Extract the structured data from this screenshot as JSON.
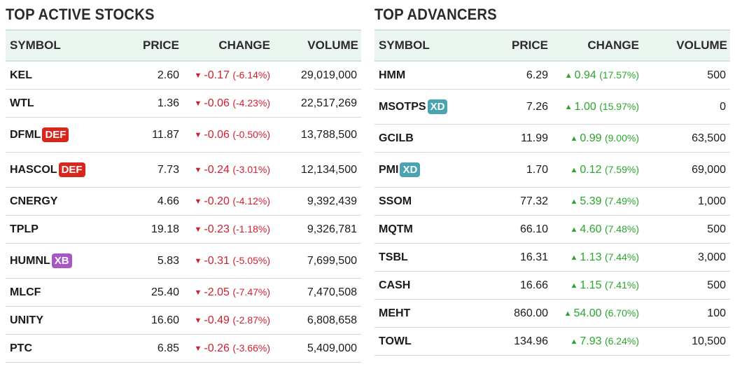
{
  "colors": {
    "down": "#d11f2e",
    "up": "#2aa52d",
    "def_badge": "#d9261c",
    "xb_badge": "#a855c8",
    "xd_badge": "#4aa3b0",
    "header_bg": "#eaf5ef"
  },
  "active": {
    "title": "TOP ACTIVE STOCKS",
    "headers": {
      "symbol": "SYMBOL",
      "price": "PRICE",
      "change": "CHANGE",
      "volume": "VOLUME"
    },
    "rows": [
      {
        "symbol": "KEL",
        "badge": "",
        "price": "2.60",
        "change": "-0.17",
        "pct": "(-6.14%)",
        "volume": "29,019,000"
      },
      {
        "symbol": "WTL",
        "badge": "",
        "price": "1.36",
        "change": "-0.06",
        "pct": "(-4.23%)",
        "volume": "22,517,269"
      },
      {
        "symbol": "DFML",
        "badge": "DEF",
        "price": "11.87",
        "change": "-0.06",
        "pct": "(-0.50%)",
        "volume": "13,788,500"
      },
      {
        "symbol": "HASCOL",
        "badge": "DEF",
        "price": "7.73",
        "change": "-0.24",
        "pct": "(-3.01%)",
        "volume": "12,134,500"
      },
      {
        "symbol": "CNERGY",
        "badge": "",
        "price": "4.66",
        "change": "-0.20",
        "pct": "(-4.12%)",
        "volume": "9,392,439"
      },
      {
        "symbol": "TPLP",
        "badge": "",
        "price": "19.18",
        "change": "-0.23",
        "pct": "(-1.18%)",
        "volume": "9,326,781"
      },
      {
        "symbol": "HUMNL",
        "badge": "XB",
        "price": "5.83",
        "change": "-0.31",
        "pct": "(-5.05%)",
        "volume": "7,699,500"
      },
      {
        "symbol": "MLCF",
        "badge": "",
        "price": "25.40",
        "change": "-2.05",
        "pct": "(-7.47%)",
        "volume": "7,470,508"
      },
      {
        "symbol": "UNITY",
        "badge": "",
        "price": "16.60",
        "change": "-0.49",
        "pct": "(-2.87%)",
        "volume": "6,808,658"
      },
      {
        "symbol": "PTC",
        "badge": "",
        "price": "6.85",
        "change": "-0.26",
        "pct": "(-3.66%)",
        "volume": "5,409,000"
      }
    ]
  },
  "advancers": {
    "title": "TOP ADVANCERS",
    "headers": {
      "symbol": "SYMBOL",
      "price": "PRICE",
      "change": "CHANGE",
      "volume": "VOLUME"
    },
    "rows": [
      {
        "symbol": "HMM",
        "badge": "",
        "price": "6.29",
        "change": "0.94",
        "pct": "(17.57%)",
        "volume": "500"
      },
      {
        "symbol": "MSOTPS",
        "badge": "XD",
        "price": "7.26",
        "change": "1.00",
        "pct": "(15.97%)",
        "volume": "0"
      },
      {
        "symbol": "GCILB",
        "badge": "",
        "price": "11.99",
        "change": "0.99",
        "pct": "(9.00%)",
        "volume": "63,500"
      },
      {
        "symbol": "PMI",
        "badge": "XD",
        "price": "1.70",
        "change": "0.12",
        "pct": "(7.59%)",
        "volume": "69,000"
      },
      {
        "symbol": "SSOM",
        "badge": "",
        "price": "77.32",
        "change": "5.39",
        "pct": "(7.49%)",
        "volume": "1,000"
      },
      {
        "symbol": "MQTM",
        "badge": "",
        "price": "66.10",
        "change": "4.60",
        "pct": "(7.48%)",
        "volume": "500"
      },
      {
        "symbol": "TSBL",
        "badge": "",
        "price": "16.31",
        "change": "1.13",
        "pct": "(7.44%)",
        "volume": "3,000"
      },
      {
        "symbol": "CASH",
        "badge": "",
        "price": "16.66",
        "change": "1.15",
        "pct": "(7.41%)",
        "volume": "500"
      },
      {
        "symbol": "MEHT",
        "badge": "",
        "price": "860.00",
        "change": "54.00",
        "pct": "(6.70%)",
        "volume": "100"
      },
      {
        "symbol": "TOWL",
        "badge": "",
        "price": "134.96",
        "change": "7.93",
        "pct": "(6.24%)",
        "volume": "10,500"
      }
    ]
  }
}
